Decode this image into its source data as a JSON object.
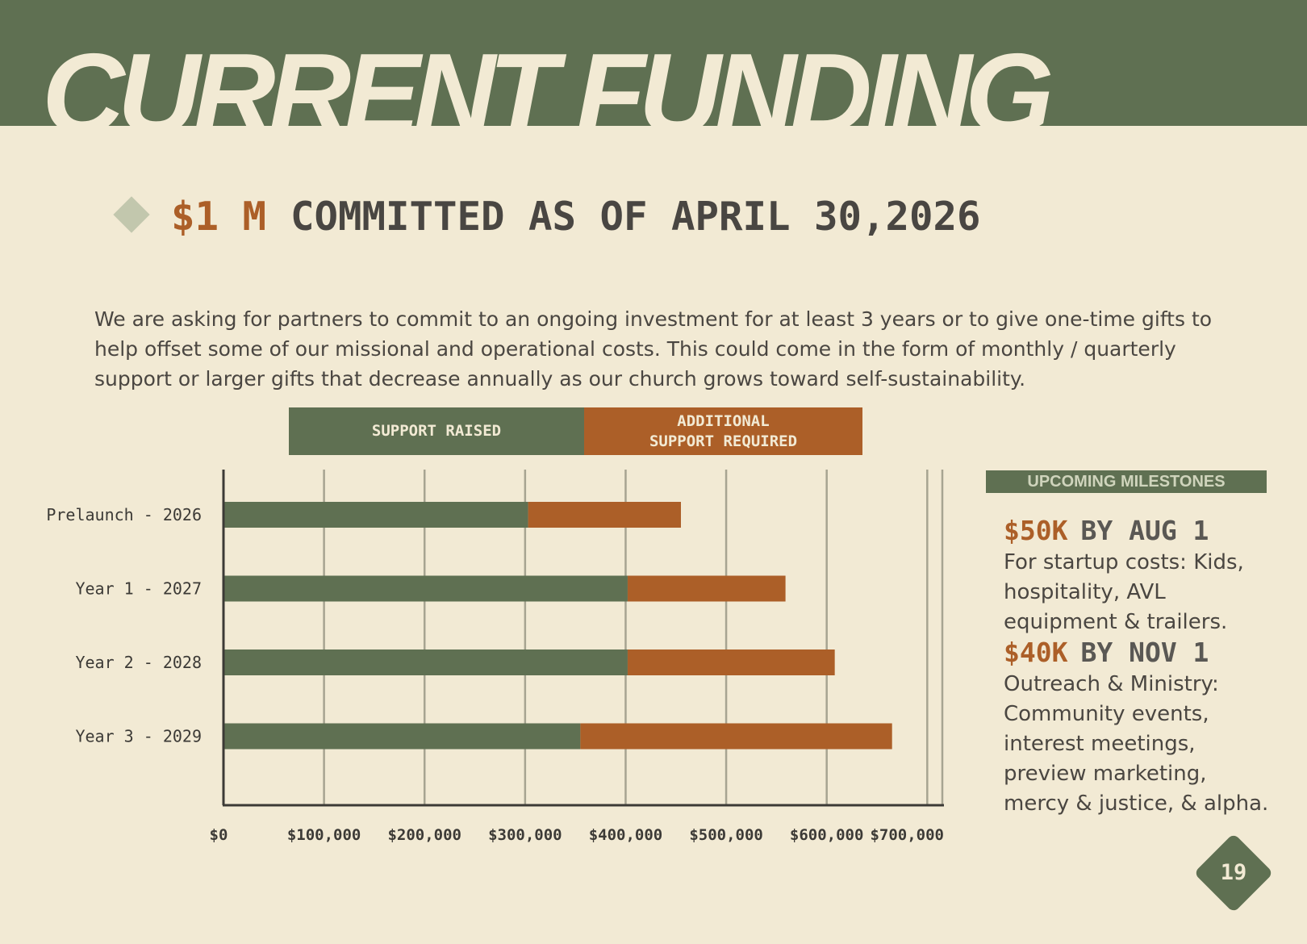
{
  "header": {
    "title": "CURRENT FUNDING"
  },
  "headline": {
    "amount": "$1 M",
    "text": "COMMITTED AS OF APRIL 30,2026"
  },
  "intro": "We are asking for partners to commit to an ongoing investment for at least 3 years or to give one-time gifts to help offset some of our missional and operational costs. This could come in the form of monthly / quarterly support or larger gifts that decrease annually as our church grows toward self-sustainability.",
  "legend": {
    "raised": "SUPPORT RAISED",
    "required": "ADDITIONAL\nSUPPORT REQUIRED"
  },
  "colors": {
    "raised": "#5f7052",
    "required": "#ac5f28",
    "grid": "#a7a491",
    "axis": "#3c3a36",
    "text": "#3c3a36"
  },
  "chart_data": {
    "type": "bar",
    "orientation": "horizontal",
    "stacked": true,
    "categories": [
      "Prelaunch - 2026",
      "Year 1 - 2027",
      "Year 2 - 2028",
      "Year 3 - 2029"
    ],
    "series": [
      {
        "name": "SUPPORT RAISED",
        "values": [
          303000,
          402000,
          402000,
          355000
        ]
      },
      {
        "name": "ADDITIONAL SUPPORT REQUIRED",
        "values": [
          152000,
          157000,
          206000,
          310000
        ]
      }
    ],
    "xlim": [
      0,
      715000
    ],
    "xticks": [
      0,
      100000,
      200000,
      300000,
      400000,
      500000,
      600000,
      700000
    ],
    "xtick_labels": [
      "$0",
      "$100,000",
      "$200,000",
      "$300,000",
      "$400,000",
      "$500,000",
      "$600,000",
      "$700,000"
    ],
    "grid": true,
    "legend_position": "top"
  },
  "milestones": {
    "heading": "UPCOMING MILESTONES",
    "items": [
      {
        "amount": "$50K",
        "label": "BY AUG 1",
        "desc": "For startup costs: Kids, hospitality, AVL equipment & trailers."
      },
      {
        "amount": "$40K",
        "label": "BY NOV 1",
        "desc": "Outreach & Ministry: Community events, interest meetings, preview marketing, mercy & justice, & alpha."
      }
    ]
  },
  "page_number": "19"
}
